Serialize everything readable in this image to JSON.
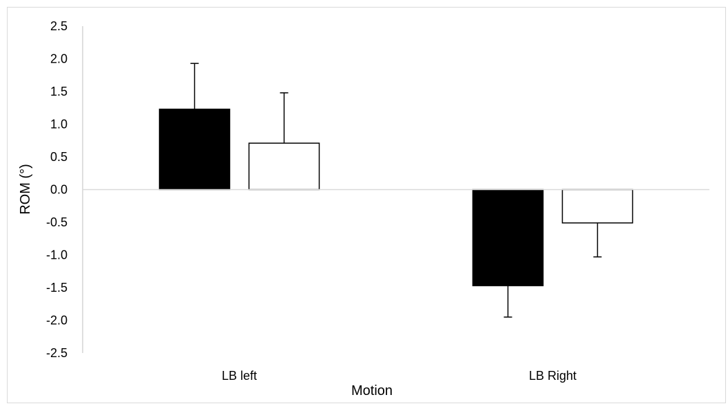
{
  "chart_data": {
    "type": "bar",
    "title": "",
    "xlabel": "Motion",
    "ylabel": "ROM (°)",
    "categories": [
      "LB left",
      "LB Right"
    ],
    "ylim": [
      -2.5,
      2.5
    ],
    "yticks": [
      "2.5",
      "2.0",
      "1.5",
      "1.0",
      "0.5",
      "0.0",
      "-0.5",
      "-1.0",
      "-1.5",
      "-2.0",
      "-2.5"
    ],
    "grid": false,
    "legend": "none",
    "series": [
      {
        "color": "#000000",
        "values": [
          1.23,
          -1.47
        ],
        "error": [
          0.7,
          0.48
        ]
      },
      {
        "color": "#ffffff",
        "values": [
          0.71,
          -0.51
        ],
        "error": [
          0.77,
          0.52
        ]
      }
    ],
    "colors": {
      "axis": "#bfbfbf",
      "bar_outline": "#000000",
      "frame": "#d9d9d9"
    }
  }
}
